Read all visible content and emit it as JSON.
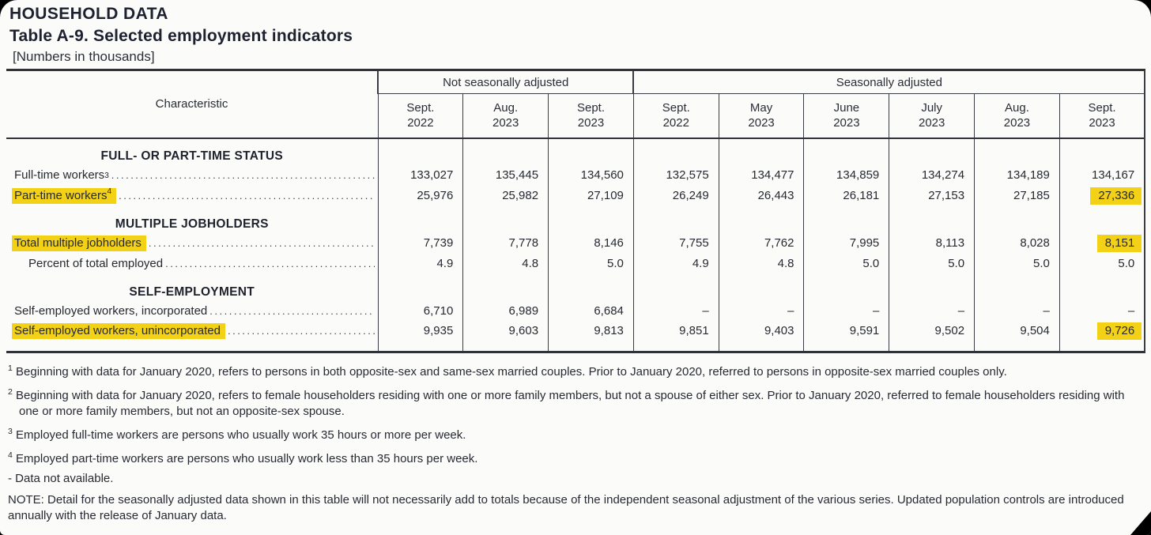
{
  "page": {
    "kicker": "HOUSEHOLD DATA",
    "title": "Table A-9. Selected employment indicators",
    "subtitle": "[Numbers in thousands]"
  },
  "colors": {
    "highlight": "#f2d116",
    "page_bg": "#fbfbf9",
    "text": "#23262f",
    "line": "#393c42"
  },
  "table": {
    "char_header": "Characteristic",
    "groups": [
      {
        "label": "Not seasonally adjusted"
      },
      {
        "label": "Seasonally adjusted"
      }
    ],
    "columns": [
      {
        "m": "Sept.",
        "y": "2022"
      },
      {
        "m": "Aug.",
        "y": "2023"
      },
      {
        "m": "Sept.",
        "y": "2023"
      },
      {
        "m": "Sept.",
        "y": "2022"
      },
      {
        "m": "May",
        "y": "2023"
      },
      {
        "m": "June",
        "y": "2023"
      },
      {
        "m": "July",
        "y": "2023"
      },
      {
        "m": "Aug.",
        "y": "2023"
      },
      {
        "m": "Sept.",
        "y": "2023"
      }
    ],
    "sections": [
      {
        "heading": "FULL- OR PART-TIME STATUS",
        "rows": [
          {
            "label": "Full-time workers",
            "sup": "3",
            "values": [
              "133,027",
              "135,445",
              "134,560",
              "132,575",
              "134,477",
              "134,859",
              "134,274",
              "134,189",
              "134,167"
            ]
          },
          {
            "label": "Part-time workers",
            "sup": "4",
            "values": [
              "25,976",
              "25,982",
              "27,109",
              "26,249",
              "26,443",
              "26,181",
              "27,153",
              "27,185",
              "27,336"
            ]
          }
        ]
      },
      {
        "heading": "MULTIPLE JOBHOLDERS",
        "rows": [
          {
            "label": "Total multiple jobholders",
            "values": [
              "7,739",
              "7,778",
              "8,146",
              "7,755",
              "7,762",
              "7,995",
              "8,113",
              "8,028",
              "8,151"
            ]
          },
          {
            "label": "Percent of total employed",
            "values": [
              "4.9",
              "4.8",
              "5.0",
              "4.9",
              "4.8",
              "5.0",
              "5.0",
              "5.0",
              "5.0"
            ]
          }
        ]
      },
      {
        "heading": "SELF-EMPLOYMENT",
        "rows": [
          {
            "label": "Self-employed workers, incorporated",
            "values": [
              "6,710",
              "6,989",
              "6,684",
              "–",
              "–",
              "–",
              "–",
              "–",
              "–"
            ]
          },
          {
            "label": "Self-employed workers, unincorporated",
            "values": [
              "9,935",
              "9,603",
              "9,813",
              "9,851",
              "9,403",
              "9,591",
              "9,502",
              "9,504",
              "9,726"
            ]
          }
        ]
      }
    ]
  },
  "footnotes": [
    {
      "marker": "1",
      "text": "Beginning with data for January 2020, refers to persons in both opposite-sex and same-sex married couples. Prior to January 2020, referred to persons in opposite-sex married couples only."
    },
    {
      "marker": "2",
      "text": "Beginning with data for January 2020, refers to female householders residing with one or more family members, but not a spouse of either sex. Prior to January 2020, referred to female householders residing with one or more family members, but not an opposite-sex spouse."
    },
    {
      "marker": "3",
      "text": "Employed full-time workers are persons who usually work 35 hours or more per week."
    },
    {
      "marker": "4",
      "text": "Employed part-time workers are persons who usually work less than 35 hours per week."
    },
    {
      "marker": "-",
      "text": "Data not available."
    },
    {
      "marker": "NOTE:",
      "text": "Detail for the seasonally adjusted data shown in this table will not necessarily add to totals because of the independent seasonal adjustment of the various series. Updated population controls are introduced annually with the release of January data."
    }
  ]
}
